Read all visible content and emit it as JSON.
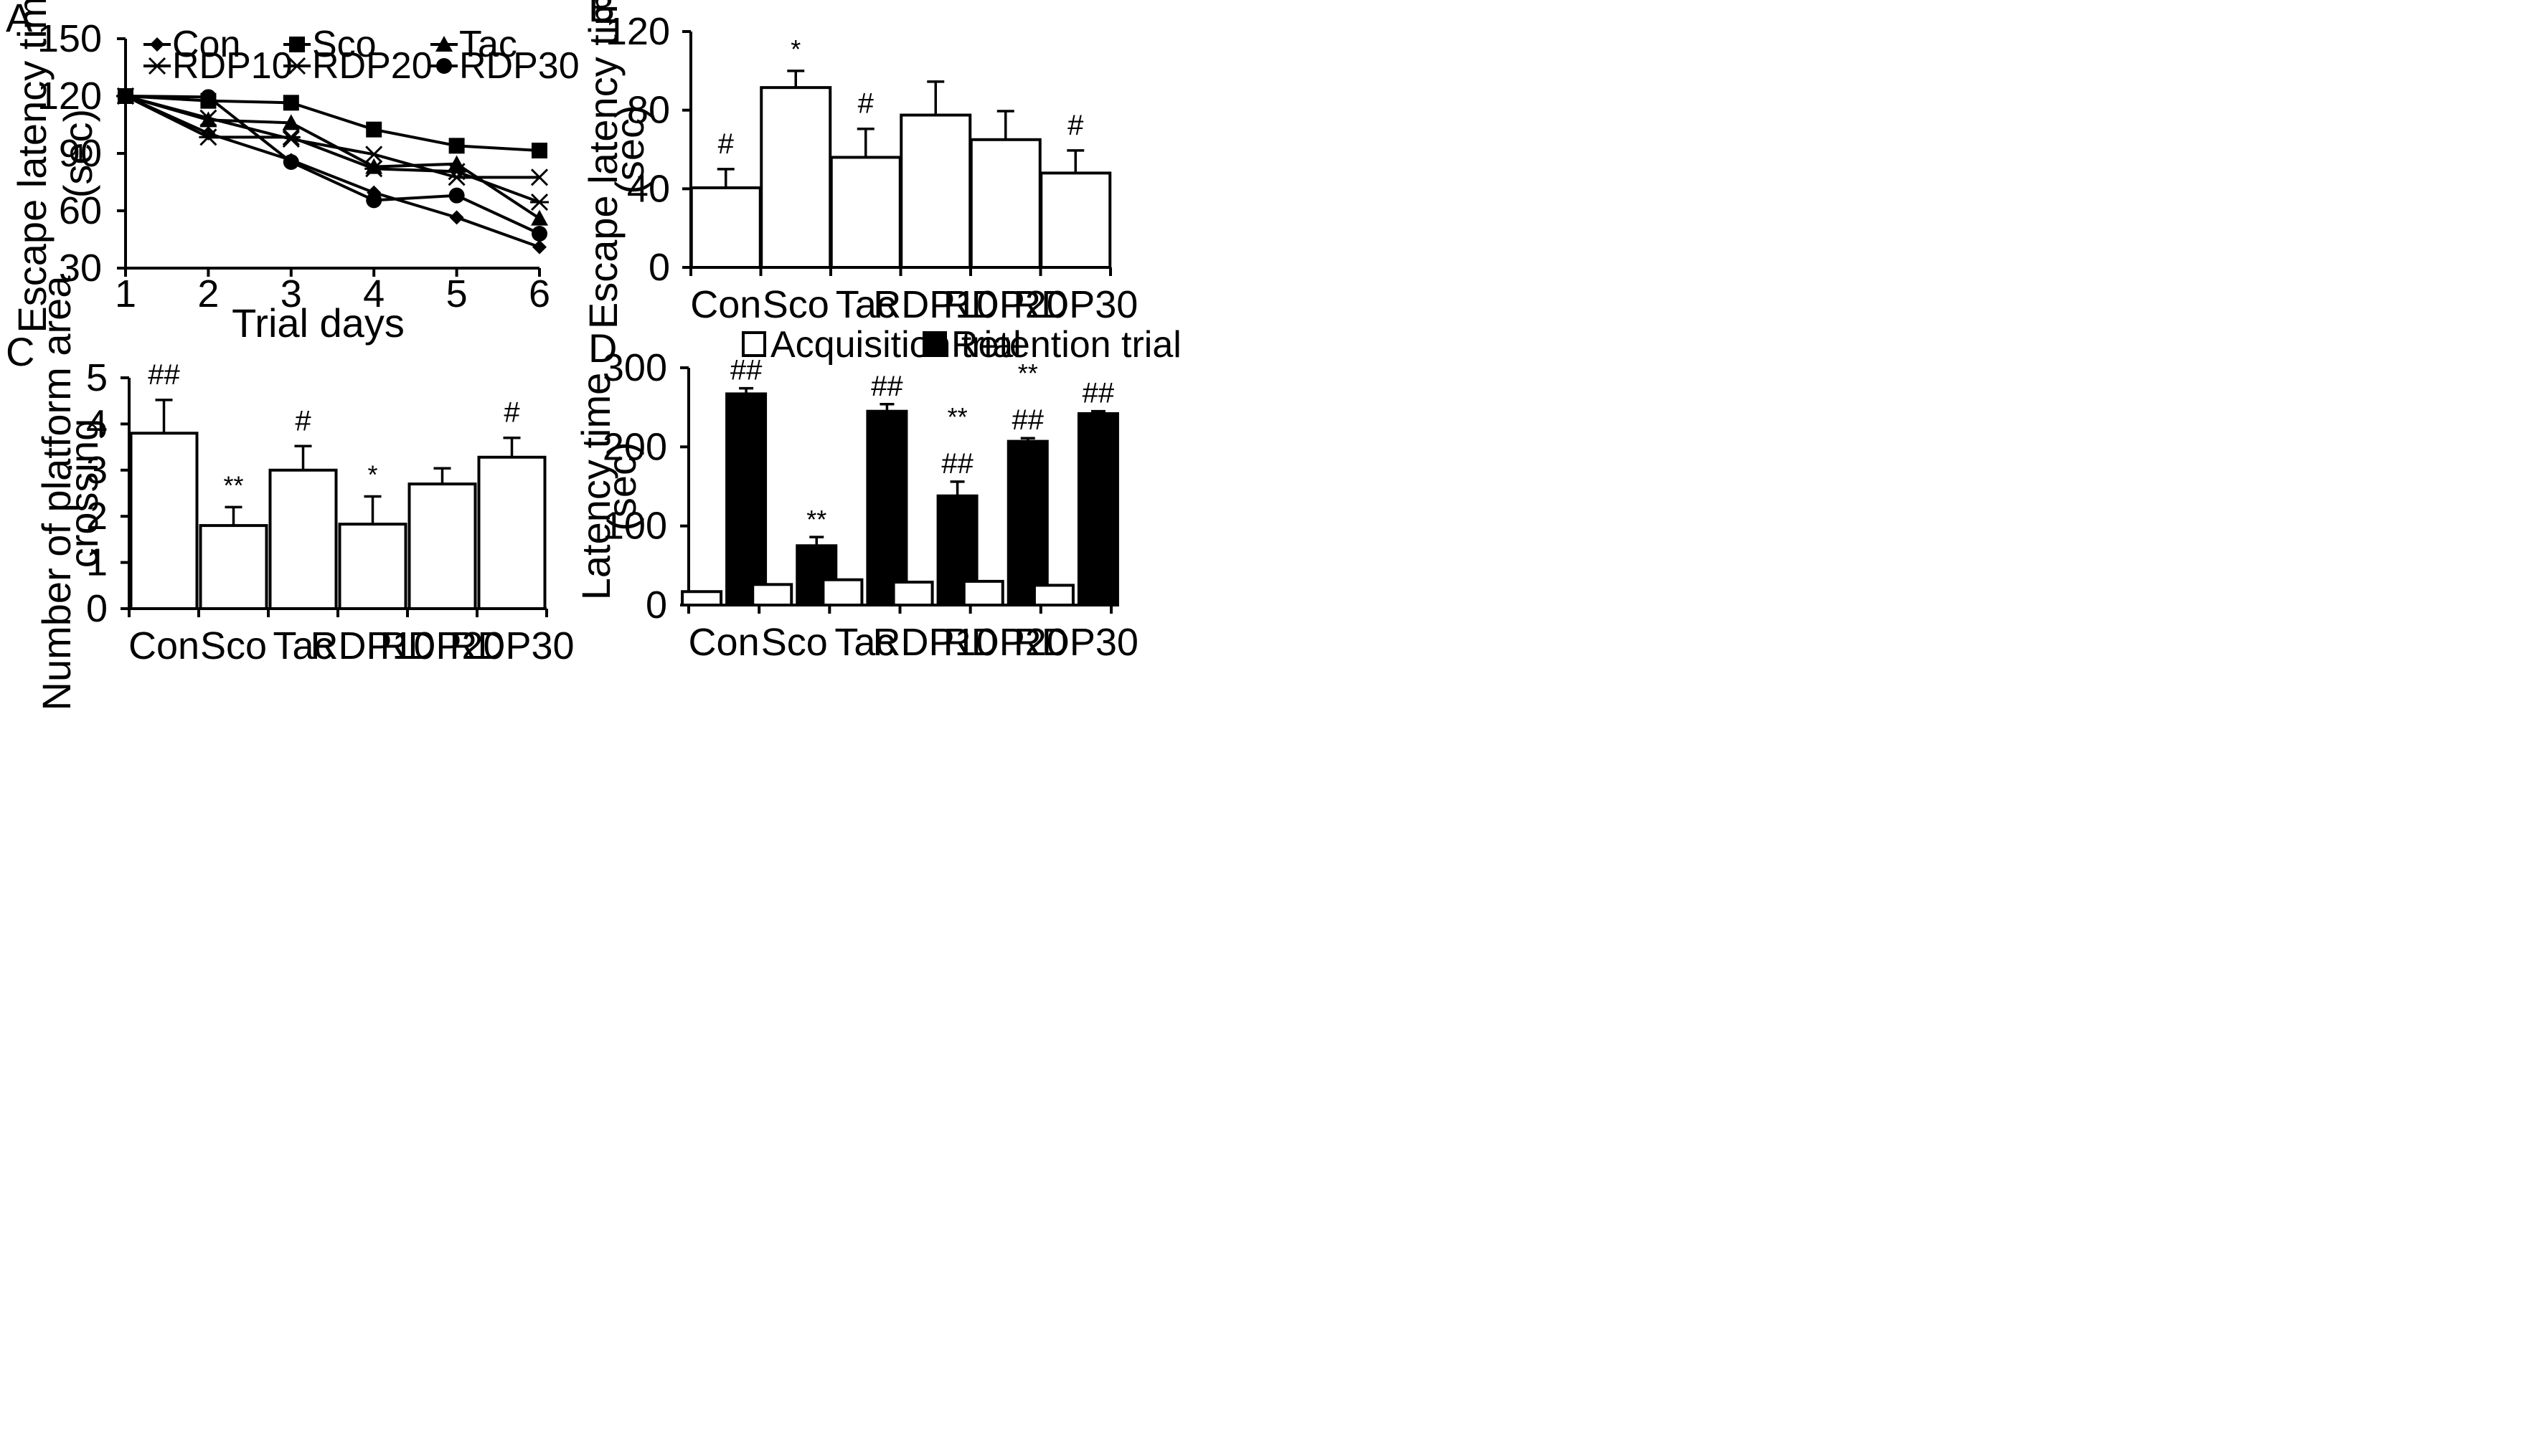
{
  "chart_data": [
    {
      "panel": "A",
      "type": "line",
      "title": "",
      "xlabel": "Trial days",
      "ylabel": "Escape latency time (sec)",
      "ylabel_lines": [
        "Escape latency time",
        "(sec)"
      ],
      "x": [
        1,
        2,
        3,
        4,
        5,
        6
      ],
      "xlim": [
        1,
        6
      ],
      "ylim": [
        30,
        150
      ],
      "yticks": [
        30,
        60,
        90,
        120,
        150
      ],
      "series": [
        {
          "name": "Con",
          "marker": "diamond",
          "values": [
            120,
            100.5,
            86.5,
            69.5,
            56.5,
            41
          ]
        },
        {
          "name": "Sco",
          "marker": "square",
          "values": [
            120,
            117.5,
            116.5,
            102.5,
            94,
            91.5
          ]
        },
        {
          "name": "Tac",
          "marker": "triangle",
          "values": [
            120,
            107.5,
            106,
            83,
            84.5,
            56
          ]
        },
        {
          "name": "RDP10",
          "marker": "x",
          "values": [
            120,
            108.5,
            97.5,
            89.5,
            77.5,
            77.5
          ]
        },
        {
          "name": "RDP20",
          "marker": "asterisk",
          "values": [
            120,
            98.5,
            98.5,
            82,
            80.5,
            64.5
          ]
        },
        {
          "name": "RDP30",
          "marker": "circle",
          "values": [
            120,
            119.5,
            85.5,
            65.5,
            68,
            48
          ]
        }
      ],
      "legend": "top (two rows)"
    },
    {
      "panel": "B",
      "type": "bar",
      "title": "",
      "xlabel": "",
      "ylabel": "Escape latency time (sec)",
      "ylabel_lines": [
        "Escape latency time",
        "(sec)"
      ],
      "categories": [
        "Con",
        "Sco",
        "Tac",
        "RDP10",
        "RDP20",
        "RDP30"
      ],
      "values": [
        40.5,
        91.5,
        56,
        77.5,
        65,
        48
      ],
      "errors": [
        9.5,
        8.5,
        14.5,
        17,
        14.5,
        11.5
      ],
      "annotations": [
        "#",
        "*",
        "#",
        "",
        "",
        "#"
      ],
      "ylim": [
        0,
        120
      ],
      "yticks": [
        0,
        40,
        80,
        120
      ]
    },
    {
      "panel": "C",
      "type": "bar",
      "title": "",
      "xlabel": "",
      "ylabel": "Number of platform area crossing",
      "ylabel_lines": [
        "Number of platform area",
        "crossing"
      ],
      "categories": [
        "Con",
        "Sco",
        "Tac",
        "RDP10",
        "RDP20",
        "RDP30"
      ],
      "values": [
        3.8,
        1.8,
        3.0,
        1.83,
        2.7,
        3.28
      ],
      "errors": [
        0.72,
        0.4,
        0.52,
        0.6,
        0.34,
        0.42
      ],
      "annotations": [
        "##",
        "**",
        "#",
        "*",
        "",
        "#"
      ],
      "ylim": [
        0,
        5
      ],
      "yticks": [
        0,
        1,
        2,
        3,
        4,
        5
      ]
    },
    {
      "panel": "D",
      "type": "bar",
      "title": "",
      "xlabel": "",
      "ylabel": "Latency time (sec)",
      "ylabel_lines": [
        "Latency time",
        "(sec)"
      ],
      "categories": [
        "Con",
        "Sco",
        "Tac",
        "RDP10",
        "RDP20",
        "RDP30"
      ],
      "series": [
        {
          "name": "Acquisition trial",
          "fill": "#ffffff",
          "values": [
            17,
            26,
            32,
            29,
            30,
            25
          ],
          "errors": [
            0,
            0,
            0,
            0,
            0,
            0
          ]
        },
        {
          "name": "Retention trial",
          "fill": "#000000",
          "values": [
            267,
            75,
            245,
            138,
            207,
            242
          ],
          "errors": [
            7,
            11,
            9,
            18,
            4,
            3
          ]
        }
      ],
      "annotations": [
        [
          "##"
        ],
        [
          "**"
        ],
        [
          "##"
        ],
        [
          "**",
          "##"
        ],
        [
          "**",
          "##"
        ],
        [
          "##"
        ]
      ],
      "ylim": [
        0,
        300
      ],
      "yticks": [
        0,
        100,
        200,
        300
      ],
      "legend": "top"
    }
  ]
}
